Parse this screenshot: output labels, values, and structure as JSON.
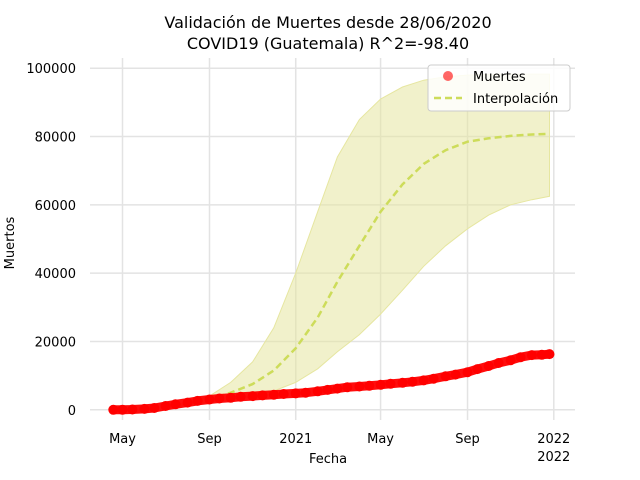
{
  "chart_data": {
    "type": "line",
    "title": "Validación de Muertes desde 28/06/2020",
    "subtitle": "COVID19 (Guatemala) R^2=-98.40",
    "xlabel": "Fecha",
    "ylabel": "Muertos",
    "x_axis_type": "date",
    "xlim": [
      "2020-03-16",
      "2022-01-31"
    ],
    "ylim": [
      -3000,
      103000
    ],
    "x_ticks": [
      {
        "date": "2020-05-01",
        "label": "May",
        "label2": ""
      },
      {
        "date": "2020-09-01",
        "label": "Sep",
        "label2": ""
      },
      {
        "date": "2021-01-01",
        "label": "2021",
        "label2": ""
      },
      {
        "date": "2021-05-01",
        "label": "May",
        "label2": ""
      },
      {
        "date": "2021-09-01",
        "label": "Sep",
        "label2": ""
      },
      {
        "date": "2022-01-01",
        "label": "2022",
        "label2": "2022"
      }
    ],
    "y_ticks": [
      0,
      20000,
      40000,
      60000,
      80000,
      100000
    ],
    "y_tick_labels": [
      "0",
      "20000",
      "40000",
      "60000",
      "80000",
      "100000"
    ],
    "grid": true,
    "legend_position": "top-right",
    "colors": {
      "muertes": "#ff0000",
      "interpolacion": "#cddc5a",
      "band": "#e6e6a0"
    },
    "series": [
      {
        "name": "Muertes",
        "style": "markers",
        "x": [
          "2020-04-18",
          "2020-05-01",
          "2020-05-15",
          "2020-06-01",
          "2020-06-15",
          "2020-07-01",
          "2020-07-15",
          "2020-08-01",
          "2020-08-15",
          "2020-09-01",
          "2020-09-15",
          "2020-10-01",
          "2020-10-15",
          "2020-11-01",
          "2020-11-15",
          "2020-12-01",
          "2020-12-15",
          "2021-01-01",
          "2021-01-15",
          "2021-02-01",
          "2021-02-15",
          "2021-03-01",
          "2021-03-15",
          "2021-04-01",
          "2021-04-15",
          "2021-05-01",
          "2021-05-15",
          "2021-06-01",
          "2021-06-15",
          "2021-07-01",
          "2021-07-15",
          "2021-08-01",
          "2021-08-15",
          "2021-09-01",
          "2021-09-15",
          "2021-10-01",
          "2021-10-15",
          "2021-11-01",
          "2021-11-15",
          "2021-12-01",
          "2021-12-15",
          "2021-12-26"
        ],
        "y": [
          0,
          30,
          80,
          250,
          500,
          1100,
          1600,
          2100,
          2600,
          3000,
          3300,
          3500,
          3800,
          4000,
          4200,
          4400,
          4600,
          4800,
          5000,
          5400,
          5800,
          6200,
          6600,
          6800,
          7000,
          7300,
          7600,
          7900,
          8200,
          8600,
          9100,
          9800,
          10300,
          11000,
          11900,
          12800,
          13700,
          14500,
          15400,
          16000,
          16100,
          16300
        ]
      },
      {
        "name": "Interpolación",
        "style": "dashed",
        "x": [
          "2020-06-28",
          "2020-08-01",
          "2020-09-01",
          "2020-10-01",
          "2020-11-01",
          "2020-12-01",
          "2021-01-01",
          "2021-02-01",
          "2021-03-01",
          "2021-04-01",
          "2021-05-01",
          "2021-06-01",
          "2021-07-01",
          "2021-08-01",
          "2021-09-01",
          "2021-10-01",
          "2021-11-01",
          "2021-12-01",
          "2021-12-26"
        ],
        "y": [
          800,
          1800,
          3000,
          5000,
          7500,
          11500,
          18000,
          27000,
          37500,
          48000,
          58000,
          66000,
          72000,
          76000,
          78500,
          79500,
          80200,
          80600,
          80800
        ]
      }
    ],
    "band": {
      "name": "",
      "x": [
        "2020-06-28",
        "2020-08-01",
        "2020-09-01",
        "2020-10-01",
        "2020-11-01",
        "2020-12-01",
        "2021-01-01",
        "2021-02-01",
        "2021-03-01",
        "2021-04-01",
        "2021-05-01",
        "2021-06-01",
        "2021-07-01",
        "2021-08-01",
        "2021-09-01",
        "2021-10-01",
        "2021-11-01",
        "2021-12-01",
        "2021-12-26"
      ],
      "y_upper": [
        800,
        2000,
        4000,
        8000,
        14000,
        24000,
        40000,
        58000,
        74000,
        85000,
        91000,
        94500,
        96500,
        97500,
        98000,
        98200,
        98300,
        98300,
        98300
      ],
      "y_lower": [
        800,
        1500,
        2200,
        3000,
        4000,
        5500,
        8000,
        12000,
        17000,
        22000,
        28000,
        35000,
        42000,
        48000,
        53000,
        57000,
        60000,
        61500,
        62500
      ]
    }
  }
}
